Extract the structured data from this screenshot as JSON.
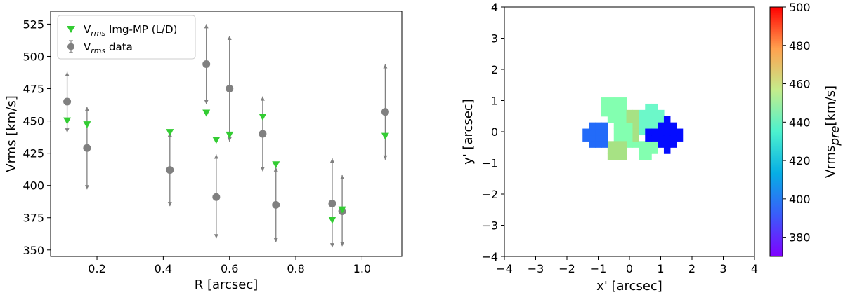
{
  "chart_data": [
    {
      "type": "scatter",
      "xlabel": "R [arcsec]",
      "ylabel": "Vrms [km/s]",
      "xlim": [
        0.06,
        1.12
      ],
      "ylim": [
        345,
        535
      ],
      "xticks": [
        "0.2",
        "0.4",
        "0.6",
        "0.8",
        "1.0"
      ],
      "yticks": [
        "350",
        "375",
        "400",
        "425",
        "450",
        "475",
        "500",
        "525"
      ],
      "grid": false,
      "legend_position": "top-left",
      "legend": [
        {
          "main": "V",
          "sub": "rms",
          "rest": " Img-MP (L/D)",
          "marker": "triangle-down",
          "color": "#33cc33"
        },
        {
          "main": "V",
          "sub": "rms",
          "rest": " data",
          "marker": "circle-errorbar",
          "color": "#808080"
        }
      ],
      "series": [
        {
          "name": "Vrms Img-MP (L/D)",
          "color": "#33cc33",
          "marker": "triangle-down",
          "points": [
            {
              "x": 0.11,
              "y": 450
            },
            {
              "x": 0.17,
              "y": 447
            },
            {
              "x": 0.42,
              "y": 441
            },
            {
              "x": 0.53,
              "y": 456
            },
            {
              "x": 0.56,
              "y": 435
            },
            {
              "x": 0.6,
              "y": 439
            },
            {
              "x": 0.7,
              "y": 453
            },
            {
              "x": 0.74,
              "y": 416
            },
            {
              "x": 0.91,
              "y": 373
            },
            {
              "x": 0.94,
              "y": 381
            },
            {
              "x": 1.07,
              "y": 438
            }
          ]
        },
        {
          "name": "Vrms data",
          "color": "#808080",
          "marker": "circle",
          "points": [
            {
              "x": 0.11,
              "y": 465,
              "low": 441,
              "high": 488
            },
            {
              "x": 0.17,
              "y": 429,
              "low": 397,
              "high": 461
            },
            {
              "x": 0.42,
              "y": 412,
              "low": 384,
              "high": 441
            },
            {
              "x": 0.53,
              "y": 494,
              "low": 463,
              "high": 525
            },
            {
              "x": 0.56,
              "y": 391,
              "low": 359,
              "high": 424
            },
            {
              "x": 0.6,
              "y": 475,
              "low": 434,
              "high": 516
            },
            {
              "x": 0.7,
              "y": 440,
              "low": 411,
              "high": 469
            },
            {
              "x": 0.74,
              "y": 385,
              "low": 356,
              "high": 414
            },
            {
              "x": 0.91,
              "y": 386,
              "low": 352,
              "high": 421
            },
            {
              "x": 0.94,
              "y": 380,
              "low": 353,
              "high": 408
            },
            {
              "x": 1.07,
              "y": 457,
              "low": 420,
              "high": 494
            }
          ]
        }
      ]
    },
    {
      "type": "heatmap",
      "xlabel": "x' [arcsec]",
      "ylabel": "y' [arcsec]",
      "xlim": [
        -4,
        4
      ],
      "ylim": [
        -4,
        4
      ],
      "xticks": [
        "−4",
        "−3",
        "−2",
        "−1",
        "0",
        "1",
        "2",
        "3",
        "4"
      ],
      "yticks": [
        "−4",
        "−3",
        "−2",
        "−1",
        "0",
        "1",
        "2",
        "3",
        "4"
      ],
      "colorbar": {
        "label_main": "Vrms",
        "label_sub": "pre",
        "label_rest": "[km/s]",
        "range": [
          370,
          500
        ],
        "ticks": [
          "380",
          "400",
          "420",
          "440",
          "460",
          "480",
          "500"
        ],
        "colormap": "rainbow"
      },
      "cell_size": 0.2,
      "regions": [
        {
          "value": 437,
          "cells": [
            [
              -0.8,
              0.6
            ],
            [
              -0.6,
              0.6
            ],
            [
              -0.4,
              0.6
            ],
            [
              -0.2,
              0.6
            ],
            [
              -0.8,
              0.8
            ],
            [
              -0.6,
              0.8
            ],
            [
              -0.4,
              0.8
            ],
            [
              -0.2,
              0.8
            ],
            [
              -0.8,
              1.0
            ],
            [
              -0.6,
              1.0
            ],
            [
              -0.4,
              1.0
            ],
            [
              -0.2,
              1.0
            ],
            [
              -0.6,
              0.4
            ],
            [
              -0.4,
              0.4
            ],
            [
              -0.2,
              0.4
            ],
            [
              -0.4,
              0.2
            ],
            [
              -0.2,
              0.2
            ],
            [
              0.0,
              0.2
            ],
            [
              -0.4,
              0.0
            ],
            [
              -0.2,
              0.0
            ],
            [
              0.0,
              0.0
            ],
            [
              -0.4,
              -0.2
            ],
            [
              -0.2,
              -0.2
            ],
            [
              0.0,
              -0.2
            ],
            [
              0.0,
              -0.4
            ],
            [
              0.2,
              -0.4
            ],
            [
              0.4,
              -0.4
            ],
            [
              0.6,
              -0.4
            ],
            [
              0.8,
              -0.4
            ],
            [
              0.4,
              -0.6
            ],
            [
              0.6,
              -0.6
            ],
            [
              0.8,
              -0.6
            ],
            [
              0.4,
              -0.8
            ],
            [
              0.6,
              -0.8
            ]
          ]
        },
        {
          "value": 455,
          "cells": [
            [
              0.0,
              0.6
            ],
            [
              0.2,
              0.6
            ],
            [
              0.0,
              0.4
            ],
            [
              0.2,
              0.4
            ],
            [
              -0.6,
              -0.4
            ],
            [
              -0.4,
              -0.4
            ],
            [
              -0.2,
              -0.4
            ],
            [
              -0.6,
              -0.6
            ],
            [
              -0.4,
              -0.6
            ],
            [
              -0.2,
              -0.6
            ],
            [
              -0.6,
              -0.8
            ],
            [
              -0.4,
              -0.8
            ],
            [
              -0.2,
              -0.8
            ],
            [
              0.2,
              0.2
            ],
            [
              0.2,
              0.0
            ],
            [
              0.2,
              -0.2
            ]
          ]
        },
        {
          "value": 425,
          "cells": [
            [
              0.4,
              0.2
            ],
            [
              0.6,
              0.2
            ],
            [
              0.8,
              0.2
            ],
            [
              1.0,
              0.2
            ],
            [
              0.4,
              0.4
            ],
            [
              0.6,
              0.4
            ],
            [
              0.8,
              0.4
            ],
            [
              1.0,
              0.4
            ],
            [
              0.4,
              0.6
            ],
            [
              0.6,
              0.6
            ],
            [
              0.8,
              0.6
            ],
            [
              1.0,
              0.6
            ],
            [
              0.6,
              0.8
            ],
            [
              0.8,
              0.8
            ],
            [
              0.4,
              0.0
            ],
            [
              0.6,
              0.0
            ]
          ]
        },
        {
          "value": 388,
          "cells": [
            [
              -1.2,
              -0.4
            ],
            [
              -1.0,
              -0.4
            ],
            [
              -0.8,
              -0.4
            ],
            [
              -1.4,
              -0.2
            ],
            [
              -1.2,
              -0.2
            ],
            [
              -1.0,
              -0.2
            ],
            [
              -0.8,
              -0.2
            ],
            [
              -1.4,
              0.0
            ],
            [
              -1.2,
              0.0
            ],
            [
              -1.0,
              0.0
            ],
            [
              -0.8,
              0.0
            ],
            [
              -1.2,
              0.2
            ],
            [
              -1.0,
              0.2
            ],
            [
              -0.8,
              0.2
            ]
          ]
        },
        {
          "value": 372,
          "cells": [
            [
              0.6,
              -0.2
            ],
            [
              0.8,
              -0.2
            ],
            [
              1.0,
              -0.2
            ],
            [
              1.2,
              -0.2
            ],
            [
              1.4,
              -0.2
            ],
            [
              1.6,
              -0.2
            ],
            [
              0.6,
              0.0
            ],
            [
              0.8,
              0.0
            ],
            [
              1.0,
              0.0
            ],
            [
              1.2,
              0.0
            ],
            [
              1.4,
              0.0
            ],
            [
              1.6,
              0.0
            ],
            [
              1.0,
              0.2
            ],
            [
              1.2,
              0.2
            ],
            [
              1.4,
              0.2
            ],
            [
              1.0,
              -0.4
            ],
            [
              1.2,
              -0.4
            ],
            [
              1.4,
              -0.4
            ],
            [
              1.2,
              0.4
            ],
            [
              1.2,
              -0.6
            ]
          ]
        }
      ]
    }
  ]
}
